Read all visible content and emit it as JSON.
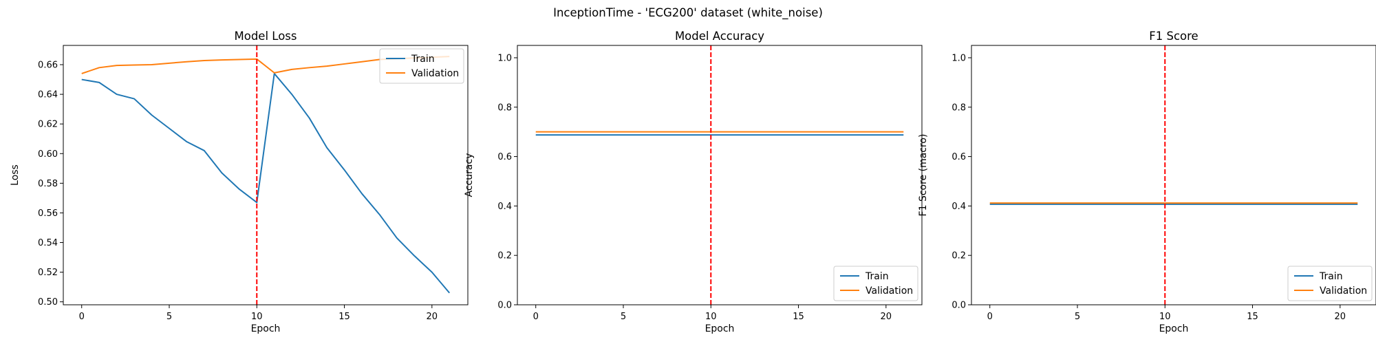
{
  "figure": {
    "suptitle": "InceptionTime - 'ECG200' dataset (white_noise)"
  },
  "colors": {
    "train": "#1f77b4",
    "validation": "#ff7f0e",
    "marker_line": "#ff0000"
  },
  "chart_data": [
    {
      "type": "line",
      "title": "Model Loss",
      "xlabel": "Epoch",
      "ylabel": "Loss",
      "xlim": [
        -1.05,
        22.05
      ],
      "ylim": [
        0.498,
        0.673
      ],
      "xticks": [
        0,
        5,
        10,
        15,
        20
      ],
      "yticks": [
        0.5,
        0.52,
        0.54,
        0.56,
        0.58,
        0.6,
        0.62,
        0.64,
        0.66
      ],
      "ytick_labels": [
        "0.50",
        "0.52",
        "0.54",
        "0.56",
        "0.58",
        "0.60",
        "0.62",
        "0.64",
        "0.66"
      ],
      "vline_x": 10,
      "legend_loc": "upper right",
      "x": [
        0,
        1,
        2,
        3,
        4,
        5,
        6,
        7,
        8,
        9,
        10,
        11,
        12,
        13,
        14,
        15,
        16,
        17,
        18,
        19,
        20,
        21
      ],
      "series": [
        {
          "name": "Train",
          "values": [
            0.65,
            0.648,
            0.64,
            0.637,
            0.626,
            0.617,
            0.608,
            0.602,
            0.587,
            0.576,
            0.567,
            0.654,
            0.64,
            0.624,
            0.604,
            0.589,
            0.573,
            0.559,
            0.543,
            0.531,
            0.52,
            0.506
          ]
        },
        {
          "name": "Validation",
          "values": [
            0.654,
            0.658,
            0.6595,
            0.6598,
            0.66,
            0.661,
            0.662,
            0.6628,
            0.6632,
            0.6635,
            0.6638,
            0.6545,
            0.6568,
            0.658,
            0.659,
            0.6605,
            0.662,
            0.6635,
            0.664,
            0.6645,
            0.665,
            0.6655
          ]
        }
      ],
      "legend": [
        "Train",
        "Validation"
      ]
    },
    {
      "type": "line",
      "title": "Model Accuracy",
      "xlabel": "Epoch",
      "ylabel": "Accuracy",
      "xlim": [
        -1.05,
        22.05
      ],
      "ylim": [
        0,
        1.05
      ],
      "xticks": [
        0,
        5,
        10,
        15,
        20
      ],
      "yticks": [
        0.0,
        0.2,
        0.4,
        0.6,
        0.8,
        1.0
      ],
      "ytick_labels": [
        "0.0",
        "0.2",
        "0.4",
        "0.6",
        "0.8",
        "1.0"
      ],
      "vline_x": 10,
      "legend_loc": "lower right",
      "x": [
        0,
        1,
        2,
        3,
        4,
        5,
        6,
        7,
        8,
        9,
        10,
        11,
        12,
        13,
        14,
        15,
        16,
        17,
        18,
        19,
        20,
        21
      ],
      "series": [
        {
          "name": "Train",
          "values": [
            0.6875,
            0.6875,
            0.6875,
            0.6875,
            0.6875,
            0.6875,
            0.6875,
            0.6875,
            0.6875,
            0.6875,
            0.6875,
            0.6875,
            0.6875,
            0.6875,
            0.6875,
            0.6875,
            0.6875,
            0.6875,
            0.6875,
            0.6875,
            0.6875,
            0.6875
          ]
        },
        {
          "name": "Validation",
          "values": [
            0.7,
            0.7,
            0.7,
            0.7,
            0.7,
            0.7,
            0.7,
            0.7,
            0.7,
            0.7,
            0.7,
            0.7,
            0.7,
            0.7,
            0.7,
            0.7,
            0.7,
            0.7,
            0.7,
            0.7,
            0.7,
            0.7
          ]
        }
      ],
      "legend": [
        "Train",
        "Validation"
      ]
    },
    {
      "type": "line",
      "title": "F1 Score",
      "xlabel": "Epoch",
      "ylabel": "F1 Score (macro)",
      "xlim": [
        -1.05,
        22.05
      ],
      "ylim": [
        0,
        1.05
      ],
      "xticks": [
        0,
        5,
        10,
        15,
        20
      ],
      "yticks": [
        0.0,
        0.2,
        0.4,
        0.6,
        0.8,
        1.0
      ],
      "ytick_labels": [
        "0.0",
        "0.2",
        "0.4",
        "0.6",
        "0.8",
        "1.0"
      ],
      "vline_x": 10,
      "legend_loc": "lower right",
      "x": [
        0,
        1,
        2,
        3,
        4,
        5,
        6,
        7,
        8,
        9,
        10,
        11,
        12,
        13,
        14,
        15,
        16,
        17,
        18,
        19,
        20,
        21
      ],
      "series": [
        {
          "name": "Train",
          "values": [
            0.407,
            0.407,
            0.407,
            0.407,
            0.407,
            0.407,
            0.407,
            0.407,
            0.407,
            0.407,
            0.407,
            0.407,
            0.407,
            0.407,
            0.407,
            0.407,
            0.407,
            0.407,
            0.407,
            0.407,
            0.407,
            0.407
          ]
        },
        {
          "name": "Validation",
          "values": [
            0.412,
            0.412,
            0.412,
            0.412,
            0.412,
            0.412,
            0.412,
            0.412,
            0.412,
            0.412,
            0.412,
            0.412,
            0.412,
            0.412,
            0.412,
            0.412,
            0.412,
            0.412,
            0.412,
            0.412,
            0.412,
            0.412
          ]
        }
      ],
      "legend": [
        "Train",
        "Validation"
      ]
    }
  ]
}
